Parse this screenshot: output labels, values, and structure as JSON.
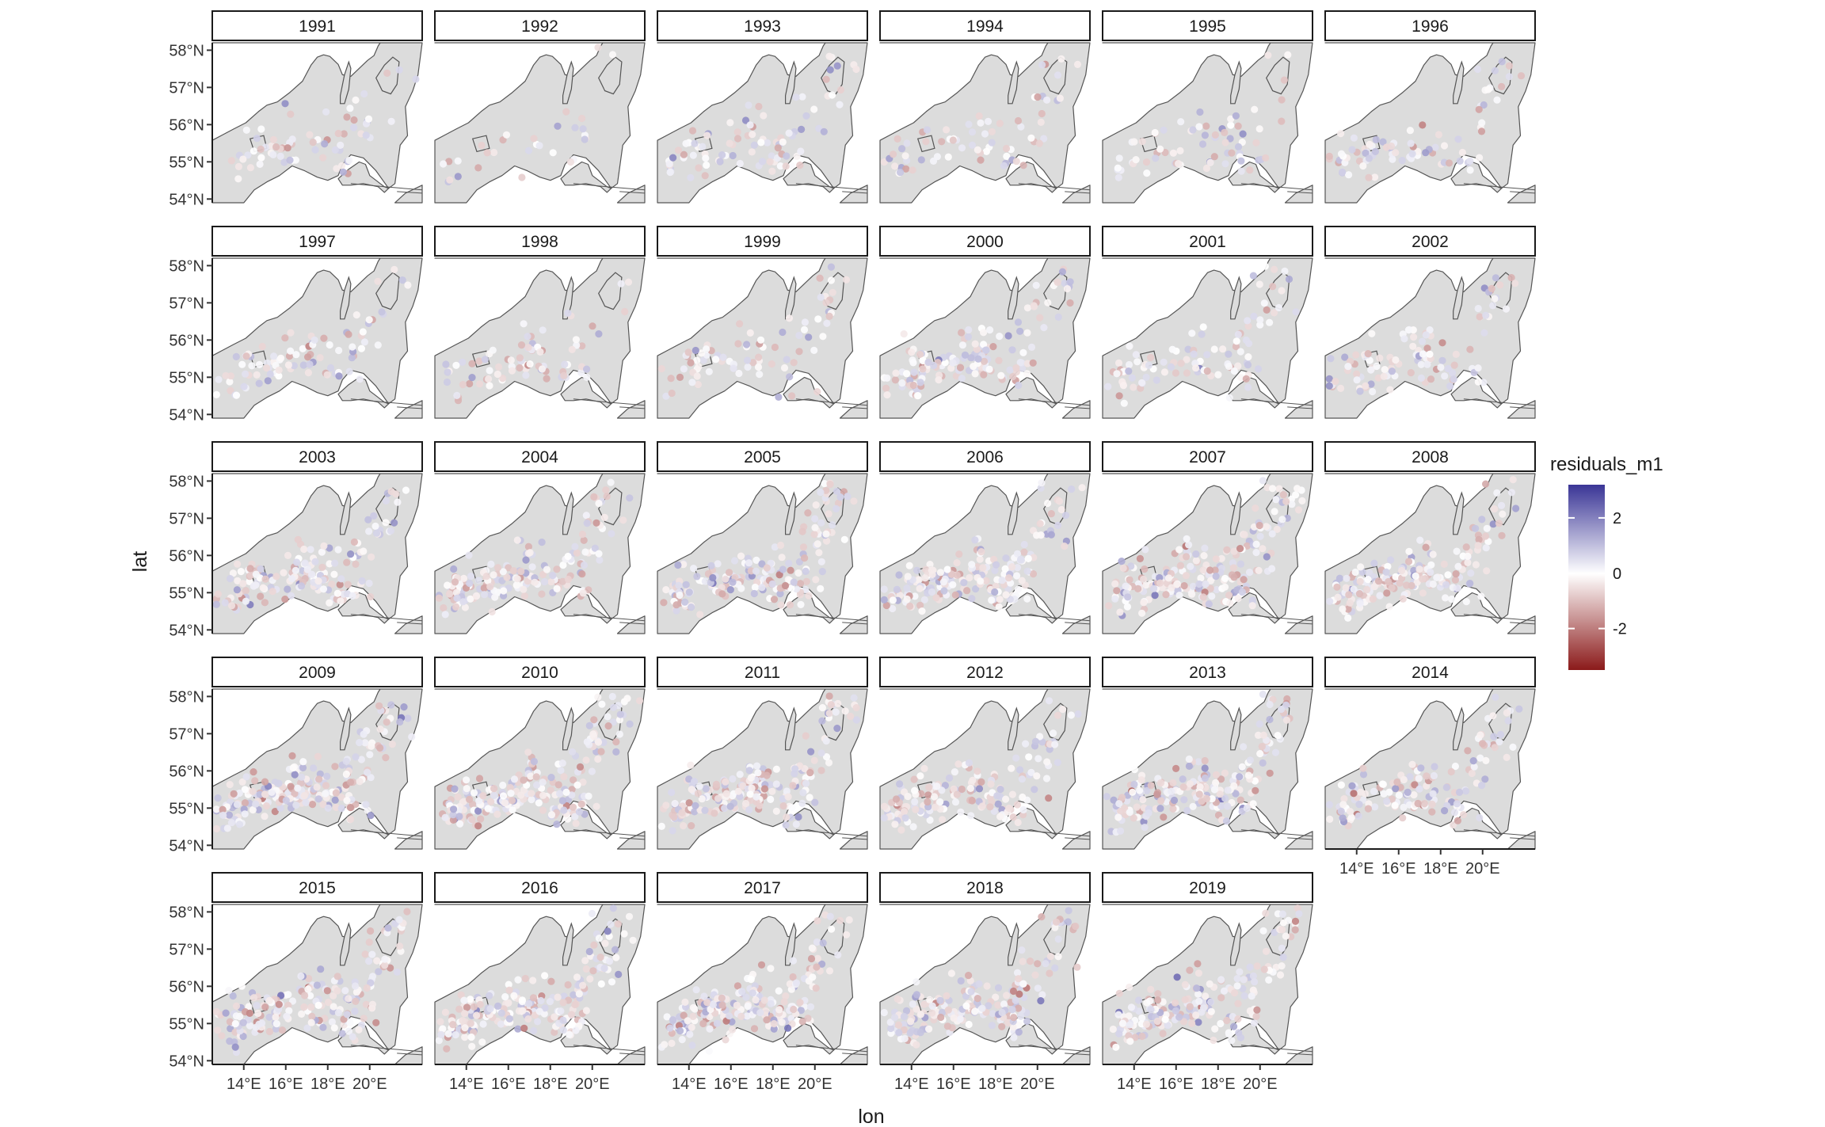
{
  "chart_data": {
    "type": "scatter",
    "layout": "faceted map, one panel per year",
    "facets": [
      "1991",
      "1992",
      "1993",
      "1994",
      "1995",
      "1996",
      "1997",
      "1998",
      "1999",
      "2000",
      "2001",
      "2002",
      "2003",
      "2004",
      "2005",
      "2006",
      "2007",
      "2008",
      "2009",
      "2010",
      "2011",
      "2012",
      "2013",
      "2014",
      "2015",
      "2016",
      "2017",
      "2018",
      "2019"
    ],
    "xlabel": "lon",
    "ylabel": "lat",
    "xlim": [
      12.5,
      22.5
    ],
    "ylim": [
      53.9,
      58.2
    ],
    "x_ticks": [
      14,
      16,
      18,
      20
    ],
    "x_tick_labels": [
      "14°E",
      "16°E",
      "18°E",
      "20°E"
    ],
    "y_ticks": [
      54,
      55,
      56,
      57,
      58
    ],
    "y_tick_labels": [
      "54°N",
      "55°N",
      "56°N",
      "57°N",
      "58°N"
    ],
    "color_scale": {
      "title": "residuals_m1",
      "type": "diverging",
      "low_color": "#8b1a1a",
      "mid_color": "#ffffff",
      "high_color": "#3a3596",
      "range": [
        -3.5,
        3.2
      ],
      "ticks": [
        2,
        0,
        -2
      ],
      "tick_labels": [
        "2",
        "0",
        "-2"
      ],
      "legend_position": "right"
    },
    "background": {
      "land_color": "#dcdcdc",
      "sea_color": "#ffffff",
      "coast_color": "#555555"
    },
    "approx_points_per_facet": {
      "1991": 70,
      "1992": 30,
      "1993": 90,
      "1994": 70,
      "1995": 70,
      "1996": 80,
      "1997": 90,
      "1998": 80,
      "1999": 80,
      "2000": 150,
      "2001": 100,
      "2002": 110,
      "2003": 160,
      "2004": 170,
      "2005": 190,
      "2006": 190,
      "2007": 220,
      "2008": 190,
      "2009": 220,
      "2010": 220,
      "2011": 200,
      "2012": 170,
      "2013": 200,
      "2014": 150,
      "2015": 190,
      "2016": 210,
      "2017": 210,
      "2018": 200,
      "2019": 190
    }
  }
}
